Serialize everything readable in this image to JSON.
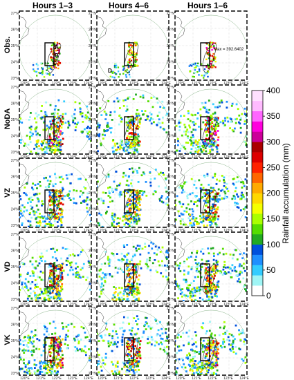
{
  "chart_data": {
    "type": "heatmap",
    "columns": [
      "Hours 1–3",
      "Hours 4–6",
      "Hours 1–6"
    ],
    "rows": [
      "Obs.",
      "NoDA",
      "VZ",
      "VD",
      "VK"
    ],
    "x_tick_labels": [
      "120°E",
      "121°E",
      "122°E",
      "123°E",
      "124°E"
    ],
    "y_tick_labels": [
      "27°N",
      "26°N",
      "25°N",
      "24°N",
      "23°N"
    ],
    "annotations": {
      "labels_hours13": [
        "A",
        "B",
        "C"
      ],
      "label_hours46": "D",
      "max_text": "Max = 392.6402"
    },
    "colorbar": {
      "label": "Rainfall accumulation (mm)",
      "ticks": [
        0,
        50,
        100,
        150,
        200,
        250,
        300,
        350,
        400
      ],
      "range": [
        0,
        400
      ],
      "colors": [
        "#ffffff",
        "#9ff5f5",
        "#33ccff",
        "#1f8fff",
        "#0050dc",
        "#22aa22",
        "#55dd00",
        "#aaff00",
        "#f5ff00",
        "#ffd800",
        "#ffaa00",
        "#ff6600",
        "#ff2200",
        "#dd0000",
        "#aa0000",
        "#cc0099",
        "#ff00dd",
        "#ff66ff",
        "#ffbbff",
        "#ffe0ff"
      ]
    },
    "panel_intensity": [
      [
        0.55,
        0.45,
        0.6
      ],
      [
        0.7,
        0.55,
        0.7
      ],
      [
        0.6,
        0.5,
        0.6
      ],
      [
        0.6,
        0.55,
        0.6
      ],
      [
        0.65,
        0.6,
        0.65
      ]
    ]
  }
}
